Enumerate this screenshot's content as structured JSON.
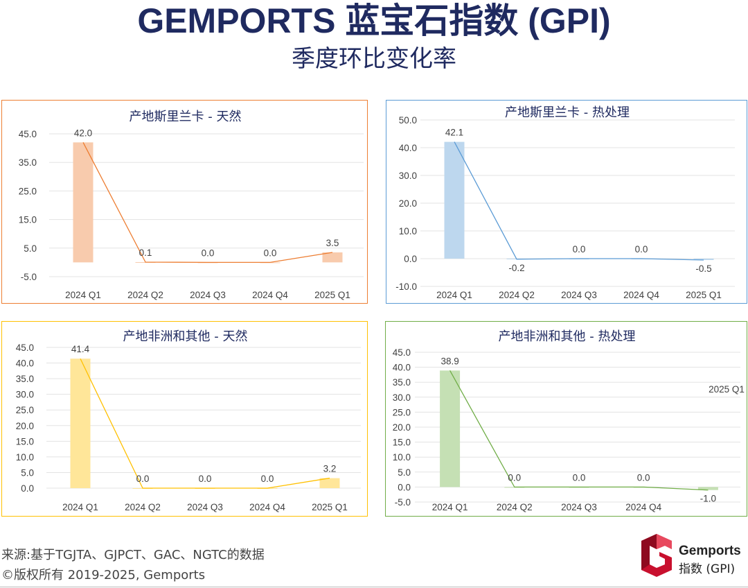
{
  "header": {
    "title": "GEMPORTS 蓝宝石指数 (GPI)",
    "subtitle": "季度环比变化率"
  },
  "chart_data": [
    {
      "type": "bar",
      "title": "产地斯里兰卡 - 天然",
      "categories": [
        "2024 Q1",
        "2024 Q2",
        "2024 Q3",
        "2024 Q4",
        "2025 Q1"
      ],
      "values": [
        42.0,
        0.1,
        0.0,
        0.0,
        3.5
      ],
      "value_labels": [
        "42.0",
        "0.1",
        "0.0",
        "0.0",
        "3.5"
      ],
      "overlay": "line",
      "ylim": [
        -5.0,
        45.0
      ],
      "yticks": [
        -5.0,
        5.0,
        15.0,
        25.0,
        35.0,
        45.0
      ],
      "ytick_labels": [
        "-5.0",
        "5.0",
        "15.0",
        "25.0",
        "35.0",
        "45.0"
      ],
      "bar_color": "#f8cbad",
      "line_color": "#ed7d31",
      "border_color": "#ed7d31",
      "grid": true
    },
    {
      "type": "bar",
      "title": "产地斯里兰卡 - 热处理",
      "categories": [
        "2024 Q1",
        "2024 Q2",
        "2024 Q3",
        "2024 Q4",
        "2025 Q1"
      ],
      "values": [
        42.1,
        -0.2,
        0.0,
        0.0,
        -0.5
      ],
      "value_labels": [
        "42.1",
        "-0.2",
        "0.0",
        "0.0",
        "-0.5"
      ],
      "overlay": "line",
      "ylim": [
        -10.0,
        50.0
      ],
      "yticks": [
        -10.0,
        0.0,
        10.0,
        20.0,
        30.0,
        40.0,
        50.0
      ],
      "ytick_labels": [
        "-10.0",
        "0.0",
        "10.0",
        "20.0",
        "30.0",
        "40.0",
        "50.0"
      ],
      "bar_color": "#bdd7ee",
      "line_color": "#5b9bd5",
      "border_color": "#5b9bd5",
      "grid": true
    },
    {
      "type": "bar",
      "title": "产地非洲和其他 - 天然",
      "categories": [
        "2024 Q1",
        "2024 Q2",
        "2024 Q3",
        "2024 Q4",
        "2025 Q1"
      ],
      "values": [
        41.4,
        0.0,
        0.0,
        0.0,
        3.2
      ],
      "value_labels": [
        "41.4",
        "0.0",
        "0.0",
        "0.0",
        "3.2"
      ],
      "overlay": "line",
      "ylim": [
        0.0,
        45.0
      ],
      "yticks": [
        0.0,
        5.0,
        10.0,
        15.0,
        20.0,
        25.0,
        30.0,
        35.0,
        40.0,
        45.0
      ],
      "ytick_labels": [
        "0.0",
        "5.0",
        "10.0",
        "15.0",
        "20.0",
        "25.0",
        "30.0",
        "35.0",
        "40.0",
        "45.0"
      ],
      "bar_color": "#ffe699",
      "line_color": "#ffc000",
      "border_color": "#ffc000",
      "grid": true
    },
    {
      "type": "bar",
      "title": "产地非洲和其他 - 热处理",
      "categories": [
        "2024 Q1",
        "2024 Q2",
        "2024 Q3",
        "2024 Q4",
        ""
      ],
      "values": [
        38.9,
        0.0,
        0.0,
        0.0,
        -1.0
      ],
      "value_labels": [
        "38.9",
        "0.0",
        "0.0",
        "0.0",
        "-1.0"
      ],
      "floating_label": "2025 Q1",
      "overlay": "line",
      "ylim": [
        -5.0,
        45.0
      ],
      "yticks": [
        -5.0,
        0.0,
        5.0,
        10.0,
        15.0,
        20.0,
        25.0,
        30.0,
        35.0,
        40.0,
        45.0
      ],
      "ytick_labels": [
        "-5.0",
        "0.0",
        "5.0",
        "10.0",
        "15.0",
        "20.0",
        "25.0",
        "30.0",
        "35.0",
        "40.0",
        "45.0"
      ],
      "bar_color": "#c5e0b4",
      "line_color": "#70ad47",
      "border_color": "#70ad47",
      "grid": true
    }
  ],
  "footer": {
    "source": "来源:基于TGJTA、GJPCT、GAC、NGTC的数据",
    "copyright": "©版权所有 2019-2025, Gemports"
  },
  "logo": {
    "line1": "Gemports",
    "line2": "指数 (GPI)",
    "icon": "gemports-g-logo-icon"
  }
}
